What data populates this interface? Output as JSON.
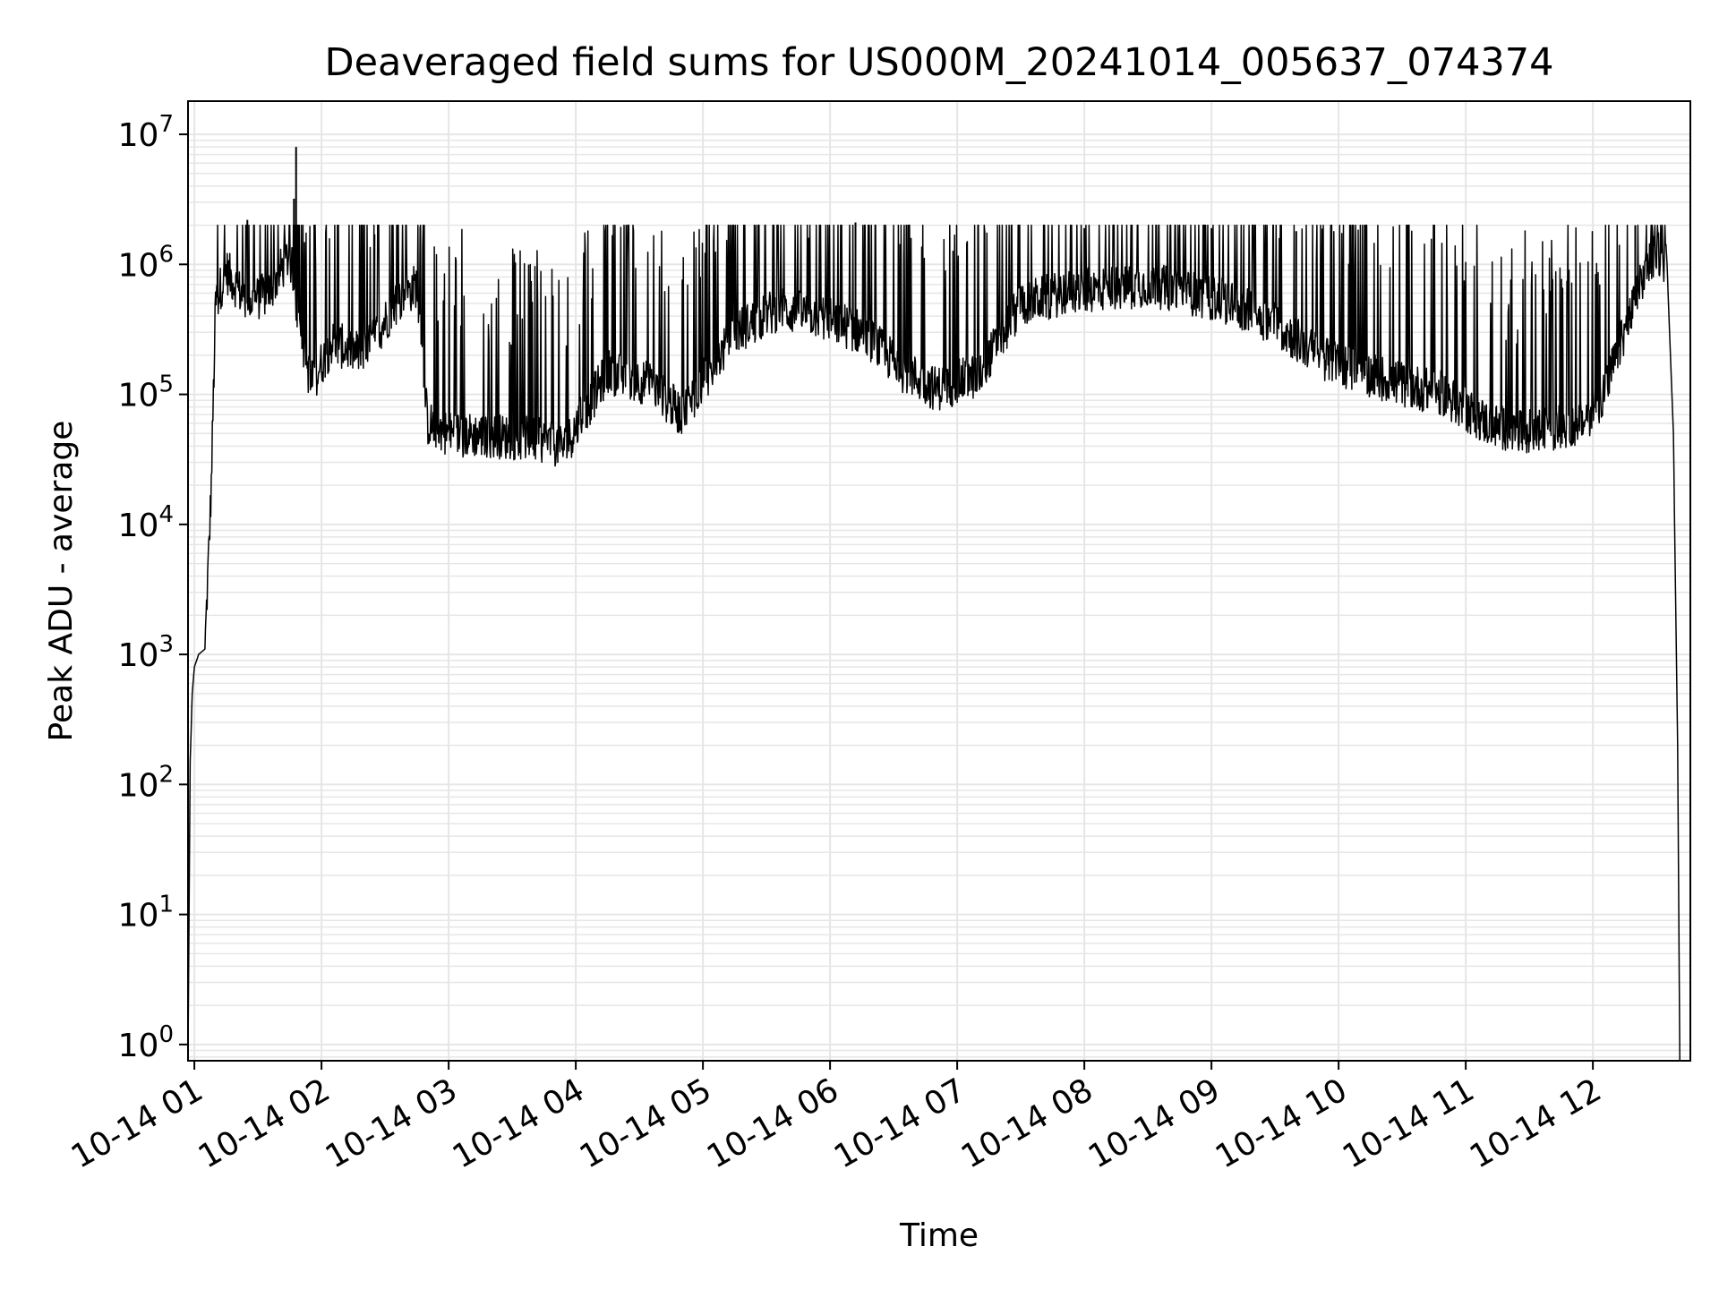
{
  "chart_data": {
    "type": "line",
    "title": "Deaveraged field sums for US000M_20241014_005637_074374",
    "xlabel": "Time",
    "ylabel": "Peak ADU - average",
    "yscale": "log",
    "ylim": [
      0.75,
      18000000
    ],
    "xlim": [
      "2024-10-14 00:57",
      "2024-10-14 12:46"
    ],
    "grid": true,
    "line_color": "#000000",
    "grid_color": "#e6e6e6",
    "x_ticks": [
      {
        "value": "2024-10-14 01:00",
        "label": "10-14 01"
      },
      {
        "value": "2024-10-14 02:00",
        "label": "10-14 02"
      },
      {
        "value": "2024-10-14 03:00",
        "label": "10-14 03"
      },
      {
        "value": "2024-10-14 04:00",
        "label": "10-14 04"
      },
      {
        "value": "2024-10-14 05:00",
        "label": "10-14 05"
      },
      {
        "value": "2024-10-14 06:00",
        "label": "10-14 06"
      },
      {
        "value": "2024-10-14 07:00",
        "label": "10-14 07"
      },
      {
        "value": "2024-10-14 08:00",
        "label": "10-14 08"
      },
      {
        "value": "2024-10-14 09:00",
        "label": "10-14 09"
      },
      {
        "value": "2024-10-14 10:00",
        "label": "10-14 10"
      },
      {
        "value": "2024-10-14 11:00",
        "label": "10-14 11"
      },
      {
        "value": "2024-10-14 12:00",
        "label": "10-14 12"
      }
    ],
    "y_ticks": [
      {
        "value": 1,
        "base": "10",
        "exp": "0"
      },
      {
        "value": 10,
        "base": "10",
        "exp": "1"
      },
      {
        "value": 100,
        "base": "10",
        "exp": "2"
      },
      {
        "value": 1000,
        "base": "10",
        "exp": "3"
      },
      {
        "value": 10000,
        "base": "10",
        "exp": "4"
      },
      {
        "value": 100000,
        "base": "10",
        "exp": "5"
      },
      {
        "value": 1000000,
        "base": "10",
        "exp": "6"
      },
      {
        "value": 10000000,
        "base": "10",
        "exp": "7"
      }
    ],
    "series": [
      {
        "x": [
          "2024-10-14 00:57",
          "2024-10-14 00:58",
          "2024-10-14 00:59",
          "2024-10-14 01:00",
          "2024-10-14 01:02",
          "2024-10-14 01:05",
          "2024-10-14 01:08",
          "2024-10-14 01:10",
          "2024-10-14 01:15",
          "2024-10-14 01:25",
          "2024-10-14 01:35",
          "2024-10-14 01:45",
          "2024-10-14 01:50",
          "2024-10-14 01:55",
          "2024-10-14 02:05",
          "2024-10-14 02:20",
          "2024-10-14 02:35",
          "2024-10-14 02:45",
          "2024-10-14 02:50",
          "2024-10-14 03:00",
          "2024-10-14 03:20",
          "2024-10-14 03:40",
          "2024-10-14 03:55",
          "2024-10-14 04:15",
          "2024-10-14 04:35",
          "2024-10-14 04:50",
          "2024-10-14 05:15",
          "2024-10-14 05:35",
          "2024-10-14 05:55",
          "2024-10-14 06:15",
          "2024-10-14 06:35",
          "2024-10-14 06:50",
          "2024-10-14 07:10",
          "2024-10-14 07:30",
          "2024-10-14 07:50",
          "2024-10-14 08:10",
          "2024-10-14 08:30",
          "2024-10-14 08:50",
          "2024-10-14 09:10",
          "2024-10-14 09:30",
          "2024-10-14 09:50",
          "2024-10-14 10:10",
          "2024-10-14 10:30",
          "2024-10-14 10:50",
          "2024-10-14 11:10",
          "2024-10-14 11:25",
          "2024-10-14 11:40",
          "2024-10-14 11:55",
          "2024-10-14 12:05",
          "2024-10-14 12:15",
          "2024-10-14 12:25",
          "2024-10-14 12:30",
          "2024-10-14 12:35",
          "2024-10-14 12:38",
          "2024-10-14 12:40",
          "2024-10-14 12:41"
        ],
        "y": [
          0.8,
          150,
          500,
          800,
          1000,
          1100,
          20000,
          500000,
          900000,
          500000,
          600000,
          1200000,
          300000,
          120000,
          250000,
          200000,
          500000,
          700000,
          60000,
          50000,
          48000,
          45000,
          40000,
          150000,
          120000,
          70000,
          300000,
          450000,
          400000,
          300000,
          150000,
          110000,
          140000,
          500000,
          600000,
          650000,
          700000,
          600000,
          500000,
          350000,
          200000,
          150000,
          120000,
          100000,
          60000,
          50000,
          55000,
          60000,
          100000,
          300000,
          900000,
          1300000,
          1000000,
          50000,
          200,
          0.8
        ],
        "peaks": [
          {
            "x": "2024-10-14 01:48",
            "y": 8000000
          },
          {
            "x": "2024-10-14 01:47",
            "y": 3200000
          },
          {
            "x": "2024-10-14 01:25",
            "y": 2200000
          },
          {
            "x": "2024-10-14 02:25",
            "y": 1700000
          },
          {
            "x": "2024-10-14 05:50",
            "y": 1600000
          },
          {
            "x": "2024-10-14 06:12",
            "y": 2100000
          },
          {
            "x": "2024-10-14 08:00",
            "y": 1900000
          },
          {
            "x": "2024-10-14 09:00",
            "y": 1900000
          },
          {
            "x": "2024-10-14 09:40",
            "y": 1800000
          },
          {
            "x": "2024-10-14 12:20",
            "y": 2000000
          }
        ]
      }
    ]
  }
}
